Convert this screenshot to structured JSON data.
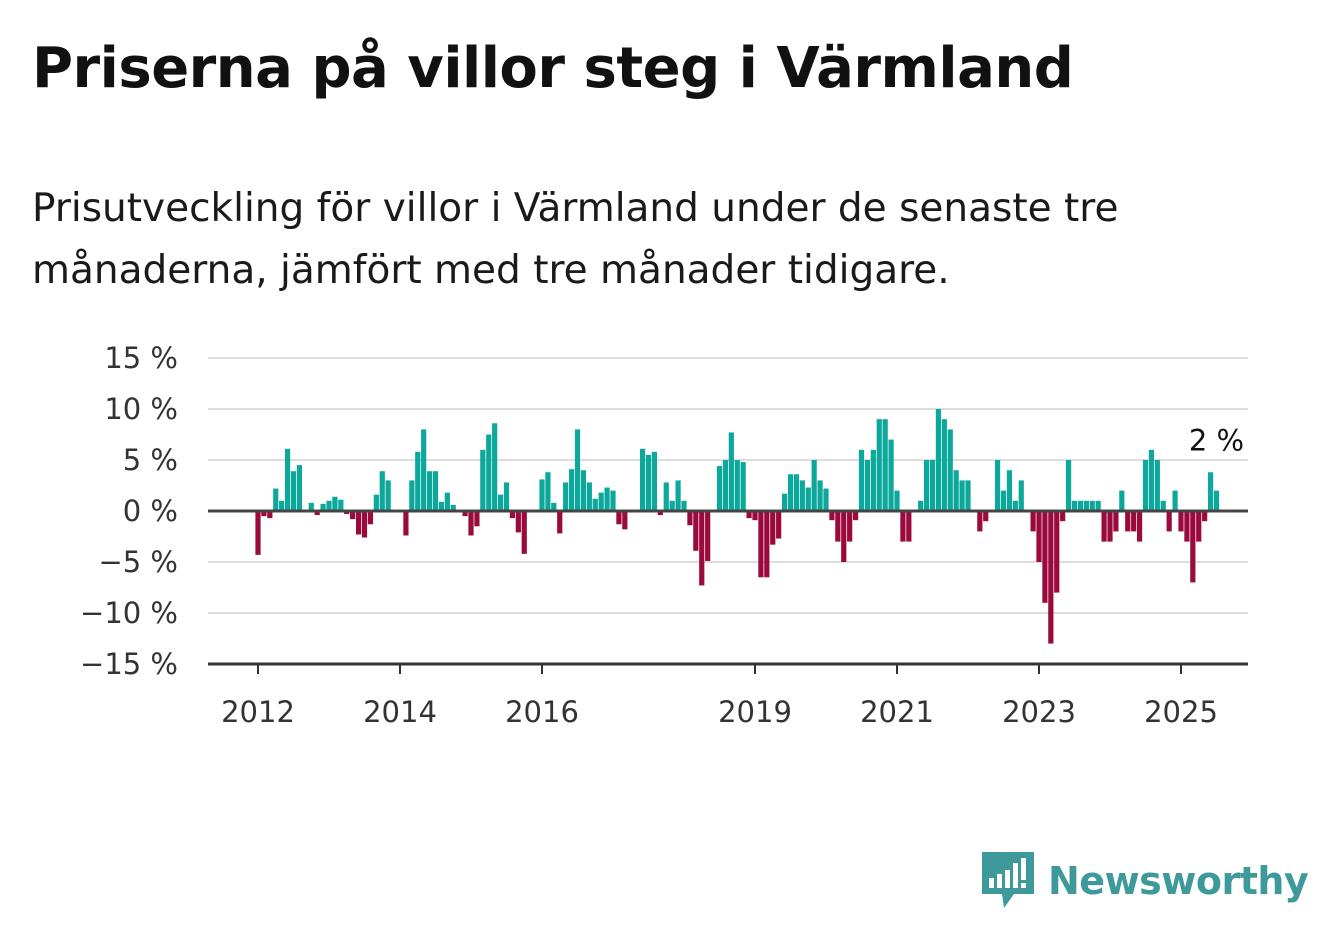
{
  "header": {
    "title": "Priserna på villor steg i Värmland",
    "subtitle": "Prisutveckling för villor i Värmland under de senaste tre månaderna, jämfört med tre månader tidigare."
  },
  "brand": {
    "name": "Newsworthy",
    "color": "#3e9a9a",
    "icon": "newsworthy-logo-icon"
  },
  "colors": {
    "positive": "#0ca89b",
    "negative": "#9b0a3c",
    "grid": "#dddddd",
    "zero": "#444444"
  },
  "chart_data": {
    "type": "bar",
    "title": "Priserna på villor steg i Värmland",
    "xlabel": "",
    "ylabel": "",
    "ylim": [
      -15,
      15
    ],
    "y_ticks": [
      {
        "value": 15,
        "label": "15 %"
      },
      {
        "value": 10,
        "label": "10 %"
      },
      {
        "value": 5,
        "label": "5 %"
      },
      {
        "value": 0,
        "label": "0 %"
      },
      {
        "value": -5,
        "label": "−5 %"
      },
      {
        "value": -10,
        "label": "−10 %"
      },
      {
        "value": -15,
        "label": "−15 %"
      }
    ],
    "x_ticks": [
      "2012",
      "2014",
      "2016",
      "2019",
      "2021",
      "2023",
      "2025"
    ],
    "grid": true,
    "start": "2012-01",
    "end": "2025-04",
    "values": [
      -4.3,
      -0.5,
      -0.7,
      2.2,
      1.0,
      6.1,
      3.9,
      4.5,
      0.0,
      0.8,
      -0.4,
      0.7,
      1.0,
      1.4,
      1.1,
      -0.3,
      -0.8,
      -2.3,
      -2.6,
      -1.3,
      1.6,
      3.9,
      3.0,
      0.0,
      0.0,
      -2.4,
      3.0,
      5.8,
      8.0,
      3.9,
      3.9,
      0.9,
      1.8,
      0.6,
      0.0,
      -0.5,
      -2.4,
      -1.5,
      6.0,
      7.5,
      8.6,
      1.6,
      2.8,
      -0.7,
      -2.1,
      -4.2,
      0.0,
      0.0,
      3.1,
      3.8,
      0.8,
      -2.2,
      2.8,
      4.1,
      8.0,
      4.0,
      2.8,
      1.2,
      1.8,
      2.3,
      2.0,
      -1.3,
      -1.8,
      0.0,
      0.0,
      6.1,
      5.5,
      5.8,
      -0.4,
      2.8,
      1.0,
      3.0,
      1.0,
      -1.4,
      -3.9,
      -7.3,
      -4.9,
      0.0,
      4.4,
      5.0,
      7.7,
      5.0,
      4.8,
      -0.7,
      -0.9,
      -6.5,
      -6.5,
      -3.3,
      -2.7,
      1.7,
      3.6,
      3.6,
      3.0,
      2.3,
      5.0,
      3.0,
      2.2,
      -0.9,
      -3.0,
      -5.0,
      -3.0,
      -0.9,
      6.0,
      5.0,
      6.0,
      9.0,
      9.0,
      7.0,
      2.0,
      -3.0,
      -3.0,
      0.0,
      1.0,
      5.0,
      5.0,
      10.0,
      9.0,
      8.0,
      4.0,
      3.0,
      3.0,
      0.0,
      -2.0,
      -1.0,
      0.0,
      5.0,
      2.0,
      4.0,
      1.0,
      3.0,
      0.0,
      -2.0,
      -5.0,
      -9.0,
      -13.0,
      -8.0,
      -1.0,
      5.0,
      1.0,
      1.0,
      1.0,
      1.0,
      1.0,
      -3.0,
      -3.0,
      -2.0,
      2.0,
      -2.0,
      -2.0,
      -3.0,
      5.0,
      6.0,
      5.0,
      1.0,
      -2.0,
      2.0,
      -2.0,
      -3.0,
      -7.0,
      -3.0,
      -1.0,
      3.8,
      2.0
    ],
    "annotation": {
      "label": "2 %",
      "value": 2.0
    }
  }
}
